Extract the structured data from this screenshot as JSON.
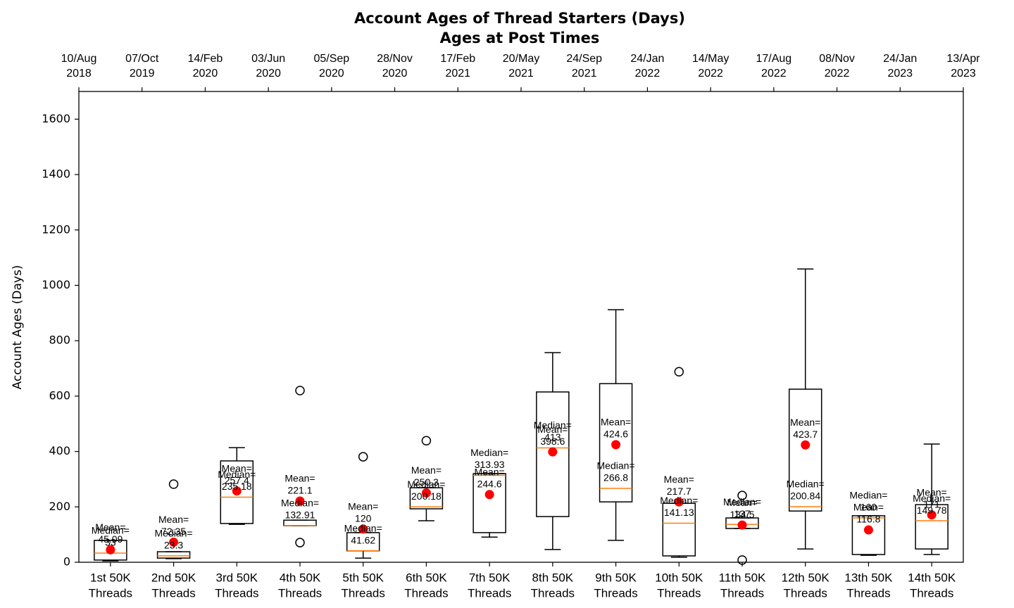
{
  "chart_data": {
    "type": "box",
    "title": "Account Ages of Thread Starters (Days)",
    "subtitle": "Ages at Post Times",
    "y_label": "Account Ages (Days)",
    "ylim": [
      0,
      1700
    ],
    "yticks": [
      0,
      200,
      400,
      600,
      800,
      1000,
      1200,
      1400,
      1600
    ],
    "grid": false,
    "box_color": "#000000",
    "median_color": "#ff7f0e",
    "mean_color": "#ff0000",
    "mean_label": "Mean=",
    "median_label": "Median=",
    "categories": [
      [
        "1st 50K",
        "Threads"
      ],
      [
        "2nd 50K",
        "Threads"
      ],
      [
        "3rd 50K",
        "Threads"
      ],
      [
        "4th 50K",
        "Threads"
      ],
      [
        "5th 50K",
        "Threads"
      ],
      [
        "6th 50K",
        "Threads"
      ],
      [
        "7th 50K",
        "Threads"
      ],
      [
        "8th 50K",
        "Threads"
      ],
      [
        "9th 50K",
        "Threads"
      ],
      [
        "10th 50K",
        "Threads"
      ],
      [
        "11th 50K",
        "Threads"
      ],
      [
        "12th 50K",
        "Threads"
      ],
      [
        "13th 50K",
        "Threads"
      ],
      [
        "14th 50K",
        "Threads"
      ]
    ],
    "top_ticks": [
      [
        "10/Aug",
        "2018"
      ],
      [
        "07/Oct",
        "2019"
      ],
      [
        "14/Feb",
        "2020"
      ],
      [
        "03/Jun",
        "2020"
      ],
      [
        "05/Sep",
        "2020"
      ],
      [
        "28/Nov",
        "2020"
      ],
      [
        "17/Feb",
        "2021"
      ],
      [
        "20/May",
        "2021"
      ],
      [
        "24/Sep",
        "2021"
      ],
      [
        "24/Jan",
        "2022"
      ],
      [
        "14/May",
        "2022"
      ],
      [
        "17/Aug",
        "2022"
      ],
      [
        "08/Nov",
        "2022"
      ],
      [
        "24/Jan",
        "2023"
      ],
      [
        "13/Apr",
        "2023"
      ]
    ],
    "boxes": [
      {
        "whisker_low": 5,
        "q1": 8,
        "median": 33,
        "q3": 79,
        "whisker_high": 79,
        "mean": 45.09,
        "outliers": []
      },
      {
        "whisker_low": 13,
        "q1": 15,
        "median": 23.3,
        "q3": 38,
        "whisker_high": 38,
        "mean": 72.35,
        "outliers": [
          282
        ]
      },
      {
        "whisker_low": 137,
        "q1": 140,
        "median": 235.18,
        "q3": 366,
        "whisker_high": 414,
        "mean": 257.4,
        "outliers": []
      },
      {
        "whisker_low": 132,
        "q1": 132,
        "median": 132.91,
        "q3": 152,
        "whisker_high": 152,
        "mean": 221.1,
        "outliers": [
          620,
          71
        ]
      },
      {
        "whisker_low": 15,
        "q1": 41,
        "median": 41.62,
        "q3": 107,
        "whisker_high": 107,
        "mean": 120,
        "outliers": [
          381
        ]
      },
      {
        "whisker_low": 150,
        "q1": 193,
        "median": 200.18,
        "q3": 269,
        "whisker_high": 269,
        "mean": 250.3,
        "outliers": [
          439
        ]
      },
      {
        "whisker_low": 91,
        "q1": 107,
        "median": 313.93,
        "q3": 320,
        "whisker_high": 320,
        "mean": 244.6,
        "outliers": []
      },
      {
        "whisker_low": 46,
        "q1": 165,
        "median": 413,
        "q3": 615,
        "whisker_high": 757,
        "mean": 398.6,
        "outliers": []
      },
      {
        "whisker_low": 79,
        "q1": 218,
        "median": 266.8,
        "q3": 645,
        "whisker_high": 912,
        "mean": 424.6,
        "outliers": []
      },
      {
        "whisker_low": 18,
        "q1": 23,
        "median": 141.13,
        "q3": 213,
        "whisker_high": 213,
        "mean": 217.7,
        "outliers": [
          688
        ]
      },
      {
        "whisker_low": 122,
        "q1": 122,
        "median": 137,
        "q3": 160,
        "whisker_high": 160,
        "mean": 134.5,
        "outliers": [
          241,
          8
        ]
      },
      {
        "whisker_low": 48,
        "q1": 185,
        "median": 200.84,
        "q3": 625,
        "whisker_high": 1059,
        "mean": 423.7,
        "outliers": []
      },
      {
        "whisker_low": 25,
        "q1": 28,
        "median": 160,
        "q3": 168,
        "whisker_high": 168,
        "mean": 116.8,
        "outliers": []
      },
      {
        "whisker_low": 28,
        "q1": 48,
        "median": 149.78,
        "q3": 208,
        "whisker_high": 427,
        "mean": 171,
        "outliers": []
      }
    ]
  }
}
